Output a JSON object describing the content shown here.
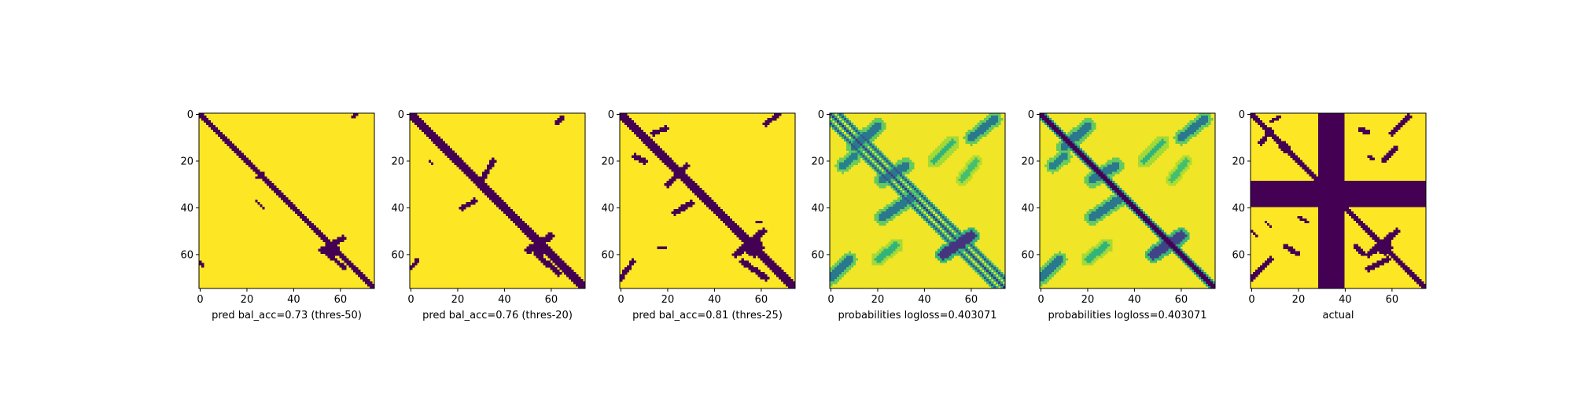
{
  "figure": {
    "colormap": "viridis",
    "colors": {
      "low": "#440154",
      "high": "#fde725"
    }
  },
  "chart_data": [
    {
      "type": "heatmap",
      "xlabel": "pred bal_acc=0.73 (thres-50)",
      "matrix_size": 75,
      "xlim": [
        0,
        75
      ],
      "ylim": [
        75,
        0
      ],
      "x_ticks": [
        0,
        20,
        40,
        60
      ],
      "y_ticks": [
        0,
        20,
        40,
        60
      ],
      "values": "binary",
      "features": [
        {
          "kind": "diag",
          "width": 1.6
        },
        {
          "kind": "blob",
          "x": 56,
          "y": 58,
          "r": 3.2
        },
        {
          "kind": "seg",
          "x1": 52,
          "y1": 58,
          "x2": 61,
          "y2": 53,
          "w": 1.2
        },
        {
          "kind": "seg",
          "x1": 55,
          "y1": 60,
          "x2": 62,
          "y2": 66,
          "w": 0.9
        },
        {
          "kind": "seg",
          "x1": 24,
          "y1": 27,
          "x2": 27,
          "y2": 25,
          "w": 0.7
        },
        {
          "kind": "seg",
          "x1": 24,
          "y1": 37,
          "x2": 27,
          "y2": 40,
          "w": 0.7
        },
        {
          "kind": "seg",
          "x1": 65,
          "y1": 1,
          "x2": 67,
          "y2": 0,
          "w": 0.6
        },
        {
          "kind": "seg",
          "x1": 0,
          "y1": 63,
          "x2": 1,
          "y2": 65,
          "w": 0.6
        }
      ]
    },
    {
      "type": "heatmap",
      "xlabel": "pred bal_acc=0.76 (thres-20)",
      "matrix_size": 75,
      "xlim": [
        0,
        75
      ],
      "ylim": [
        75,
        0
      ],
      "x_ticks": [
        0,
        20,
        40,
        60
      ],
      "y_ticks": [
        0,
        20,
        40,
        60
      ],
      "values": "binary",
      "features": [
        {
          "kind": "diag",
          "width": 2.0
        },
        {
          "kind": "blob",
          "x": 55,
          "y": 57,
          "r": 3.6
        },
        {
          "kind": "seg",
          "x1": 50,
          "y1": 58,
          "x2": 60,
          "y2": 52,
          "w": 1.4
        },
        {
          "kind": "seg",
          "x1": 54,
          "y1": 60,
          "x2": 63,
          "y2": 68,
          "w": 1.1
        },
        {
          "kind": "arc",
          "x1": 31,
          "y1": 27,
          "x2": 35,
          "y2": 20,
          "w": 1.0
        },
        {
          "kind": "arc",
          "x1": 22,
          "y1": 40,
          "x2": 27,
          "y2": 37,
          "w": 1.0
        },
        {
          "kind": "seg",
          "x1": 62,
          "y1": 4,
          "x2": 65,
          "y2": 1,
          "w": 0.8
        },
        {
          "kind": "seg",
          "x1": 0,
          "y1": 66,
          "x2": 3,
          "y2": 62,
          "w": 0.8
        },
        {
          "kind": "seg",
          "x1": 8,
          "y1": 20,
          "x2": 9,
          "y2": 21,
          "w": 0.6
        }
      ]
    },
    {
      "type": "heatmap",
      "xlabel": "pred bal_acc=0.81 (thres-25)",
      "matrix_size": 75,
      "xlim": [
        0,
        75
      ],
      "ylim": [
        75,
        0
      ],
      "x_ticks": [
        0,
        20,
        40,
        60
      ],
      "y_ticks": [
        0,
        20,
        40,
        60
      ],
      "values": "binary",
      "features": [
        {
          "kind": "diag",
          "width": 2.2
        },
        {
          "kind": "blob",
          "x": 57,
          "y": 57,
          "r": 4.0
        },
        {
          "kind": "blob",
          "x": 33,
          "y": 33,
          "r": 2.2
        },
        {
          "kind": "blob",
          "x": 12,
          "y": 12,
          "r": 2.0
        },
        {
          "kind": "seg",
          "x1": 49,
          "y1": 60,
          "x2": 61,
          "y2": 50,
          "w": 1.4
        },
        {
          "kind": "seg",
          "x1": 52,
          "y1": 63,
          "x2": 62,
          "y2": 70,
          "w": 1.2
        },
        {
          "kind": "arc",
          "x1": 20,
          "y1": 30,
          "x2": 28,
          "y2": 22,
          "w": 1.2
        },
        {
          "kind": "arc",
          "x1": 23,
          "y1": 42,
          "x2": 30,
          "y2": 38,
          "w": 1.2
        },
        {
          "kind": "seg",
          "x1": 6,
          "y1": 18,
          "x2": 10,
          "y2": 20,
          "w": 1.0
        },
        {
          "kind": "seg",
          "x1": 14,
          "y1": 8,
          "x2": 19,
          "y2": 6,
          "w": 1.0
        },
        {
          "kind": "seg",
          "x1": 62,
          "y1": 4,
          "x2": 67,
          "y2": 0,
          "w": 1.0
        },
        {
          "kind": "seg",
          "x1": 0,
          "y1": 70,
          "x2": 5,
          "y2": 63,
          "w": 1.0
        },
        {
          "kind": "seg",
          "x1": 16,
          "y1": 57,
          "x2": 19,
          "y2": 57,
          "w": 0.6
        },
        {
          "kind": "seg",
          "x1": 58,
          "y1": 46,
          "x2": 60,
          "y2": 46,
          "w": 0.6
        }
      ]
    },
    {
      "type": "heatmap",
      "xlabel": "probabilities logloss=0.403071",
      "matrix_size": 75,
      "xlim": [
        0,
        75
      ],
      "ylim": [
        75,
        0
      ],
      "x_ticks": [
        0,
        20,
        40,
        60
      ],
      "y_ticks": [
        0,
        20,
        40,
        60
      ],
      "values": "continuous",
      "features": [
        {
          "kind": "line",
          "offset": 0,
          "w": 0.5,
          "s": 0.85
        },
        {
          "kind": "line",
          "offset": 4,
          "w": 0.6,
          "s": 0.75
        },
        {
          "kind": "line",
          "offset": -4,
          "w": 0.6,
          "s": 0.75
        },
        {
          "kind": "arc",
          "x1": 10,
          "y1": 14,
          "x2": 20,
          "y2": 5,
          "w": 1.8,
          "s": 0.6
        },
        {
          "kind": "arc",
          "x1": 5,
          "y1": 22,
          "x2": 10,
          "y2": 18,
          "w": 1.5,
          "s": 0.55
        },
        {
          "kind": "arc",
          "x1": 22,
          "y1": 28,
          "x2": 32,
          "y2": 22,
          "w": 1.8,
          "s": 0.6
        },
        {
          "kind": "arc",
          "x1": 22,
          "y1": 44,
          "x2": 34,
          "y2": 36,
          "w": 1.8,
          "s": 0.6
        },
        {
          "kind": "arc",
          "x1": 48,
          "y1": 60,
          "x2": 60,
          "y2": 52,
          "w": 2.0,
          "s": 0.85
        },
        {
          "kind": "arc",
          "x1": 60,
          "y1": 10,
          "x2": 70,
          "y2": 2,
          "w": 1.6,
          "s": 0.6
        },
        {
          "kind": "arc",
          "x1": 0,
          "y1": 70,
          "x2": 8,
          "y2": 62,
          "w": 1.6,
          "s": 0.6
        },
        {
          "kind": "arc",
          "x1": 44,
          "y1": 20,
          "x2": 52,
          "y2": 12,
          "w": 1.4,
          "s": 0.35
        },
        {
          "kind": "arc",
          "x1": 20,
          "y1": 62,
          "x2": 28,
          "y2": 56,
          "w": 1.4,
          "s": 0.35
        },
        {
          "kind": "arc",
          "x1": 56,
          "y1": 28,
          "x2": 62,
          "y2": 20,
          "w": 1.2,
          "s": 0.3
        }
      ]
    },
    {
      "type": "heatmap",
      "xlabel": "probabilities logloss=0.403071",
      "matrix_size": 75,
      "xlim": [
        0,
        75
      ],
      "ylim": [
        75,
        0
      ],
      "x_ticks": [
        0,
        20,
        40,
        60
      ],
      "y_ticks": [
        0,
        20,
        40,
        60
      ],
      "values": "continuous",
      "features": [
        {
          "kind": "line",
          "offset": 0,
          "w": 1.6,
          "s": 1.0
        },
        {
          "kind": "arc",
          "x1": 10,
          "y1": 14,
          "x2": 20,
          "y2": 5,
          "w": 1.8,
          "s": 0.6
        },
        {
          "kind": "arc",
          "x1": 5,
          "y1": 22,
          "x2": 10,
          "y2": 18,
          "w": 1.5,
          "s": 0.55
        },
        {
          "kind": "arc",
          "x1": 22,
          "y1": 28,
          "x2": 32,
          "y2": 22,
          "w": 1.8,
          "s": 0.6
        },
        {
          "kind": "arc",
          "x1": 22,
          "y1": 44,
          "x2": 34,
          "y2": 36,
          "w": 1.8,
          "s": 0.6
        },
        {
          "kind": "arc",
          "x1": 48,
          "y1": 60,
          "x2": 60,
          "y2": 52,
          "w": 2.0,
          "s": 0.8
        },
        {
          "kind": "arc",
          "x1": 60,
          "y1": 10,
          "x2": 70,
          "y2": 2,
          "w": 1.6,
          "s": 0.6
        },
        {
          "kind": "arc",
          "x1": 0,
          "y1": 70,
          "x2": 8,
          "y2": 62,
          "w": 1.6,
          "s": 0.6
        },
        {
          "kind": "arc",
          "x1": 44,
          "y1": 20,
          "x2": 52,
          "y2": 12,
          "w": 1.4,
          "s": 0.35
        },
        {
          "kind": "arc",
          "x1": 20,
          "y1": 62,
          "x2": 28,
          "y2": 56,
          "w": 1.4,
          "s": 0.35
        },
        {
          "kind": "arc",
          "x1": 56,
          "y1": 28,
          "x2": 62,
          "y2": 20,
          "w": 1.2,
          "s": 0.3
        }
      ]
    },
    {
      "type": "heatmap",
      "xlabel": "actual",
      "matrix_size": 75,
      "xlim": [
        0,
        75
      ],
      "ylim": [
        75,
        0
      ],
      "x_ticks": [
        0,
        20,
        40,
        60
      ],
      "y_ticks": [
        0,
        20,
        40,
        60
      ],
      "values": "binary",
      "features": [
        {
          "kind": "diag",
          "width": 1.4
        },
        {
          "kind": "band_col",
          "from": 29,
          "to": 40
        },
        {
          "kind": "band_row",
          "from": 29,
          "to": 40
        },
        {
          "kind": "blob",
          "x": 57,
          "y": 57,
          "r": 3.0
        },
        {
          "kind": "blob",
          "x": 14,
          "y": 14,
          "r": 2.0
        },
        {
          "kind": "seg",
          "x1": 50,
          "y1": 60,
          "x2": 62,
          "y2": 50,
          "w": 1.2
        },
        {
          "kind": "seg",
          "x1": 50,
          "y1": 66,
          "x2": 58,
          "y2": 62,
          "w": 1.0
        },
        {
          "kind": "seg",
          "x1": 4,
          "y1": 12,
          "x2": 8,
          "y2": 7,
          "w": 1.0
        },
        {
          "kind": "seg",
          "x1": 8,
          "y1": 3,
          "x2": 12,
          "y2": 1,
          "w": 0.8
        },
        {
          "kind": "seg",
          "x1": 60,
          "y1": 8,
          "x2": 67,
          "y2": 1,
          "w": 1.0
        },
        {
          "kind": "seg",
          "x1": 56,
          "y1": 20,
          "x2": 62,
          "y2": 14,
          "w": 0.9
        },
        {
          "kind": "seg",
          "x1": 0,
          "y1": 70,
          "x2": 8,
          "y2": 62,
          "w": 1.0
        },
        {
          "kind": "seg",
          "x1": 14,
          "y1": 56,
          "x2": 20,
          "y2": 60,
          "w": 0.9
        },
        {
          "kind": "seg",
          "x1": 20,
          "y1": 44,
          "x2": 24,
          "y2": 46,
          "w": 0.8
        },
        {
          "kind": "seg",
          "x1": 44,
          "y1": 56,
          "x2": 48,
          "y2": 60,
          "w": 0.8
        },
        {
          "kind": "seg",
          "x1": 46,
          "y1": 6,
          "x2": 50,
          "y2": 8,
          "w": 0.9
        },
        {
          "kind": "seg",
          "x1": 50,
          "y1": 18,
          "x2": 52,
          "y2": 19,
          "w": 0.6
        },
        {
          "kind": "seg",
          "x1": 0,
          "y1": 50,
          "x2": 2,
          "y2": 52,
          "w": 0.6
        },
        {
          "kind": "seg",
          "x1": 6,
          "y1": 46,
          "x2": 8,
          "y2": 48,
          "w": 0.6
        }
      ]
    }
  ]
}
